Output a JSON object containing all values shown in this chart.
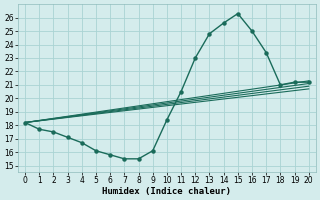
{
  "background_color": "#d4ecec",
  "grid_color": "#aad4d4",
  "line_color": "#1a6b5a",
  "xlabel": "Humidex (Indice chaleur)",
  "xlim": [
    -0.5,
    20.5
  ],
  "ylim": [
    14.5,
    27.0
  ],
  "yticks": [
    15,
    16,
    17,
    18,
    19,
    20,
    21,
    22,
    23,
    24,
    25,
    26
  ],
  "xticks": [
    0,
    1,
    2,
    3,
    4,
    5,
    6,
    7,
    8,
    9,
    10,
    11,
    12,
    13,
    14,
    15,
    16,
    17,
    18,
    19,
    20
  ],
  "main_x": [
    0,
    1,
    2,
    3,
    4,
    5,
    6,
    7,
    8,
    9,
    10,
    11,
    12,
    13,
    14,
    15,
    16,
    17,
    18,
    19,
    20
  ],
  "main_y": [
    18.2,
    17.7,
    17.5,
    17.1,
    16.7,
    16.1,
    15.8,
    15.5,
    15.5,
    16.1,
    18.4,
    20.5,
    23.0,
    24.8,
    25.6,
    26.3,
    25.0,
    23.4,
    21.0,
    21.2,
    21.2
  ],
  "flat_lines": [
    [
      18.2,
      20.7
    ],
    [
      18.2,
      20.9
    ],
    [
      18.2,
      21.1
    ],
    [
      18.2,
      21.3
    ]
  ],
  "xlabel_fontsize": 6.5,
  "tick_fontsize": 5.5
}
